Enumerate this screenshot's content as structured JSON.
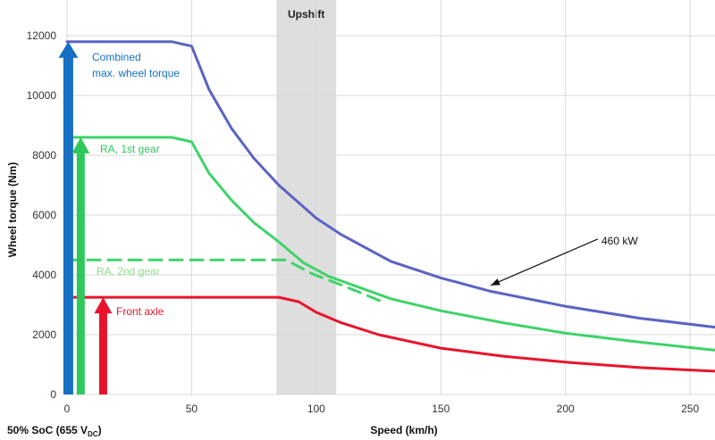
{
  "colors": {
    "blue": "#5b63c4",
    "green": "#3fd36a",
    "red": "#e8142c",
    "blue_arrow": "#1570c4",
    "green_arrow": "#2ec95a",
    "red_arrow": "#e8142c",
    "upshift_band": "#dedede",
    "combined_text": "#1570c4",
    "ra1_text": "#2ec95a",
    "ra2_text": "#8fdc8f",
    "front_text": "#e8142c",
    "grid": "#d9d9d9"
  },
  "chart_data": {
    "type": "line",
    "title": "",
    "xlabel": "Speed (km/h)",
    "ylabel": "Wheel torque (Nm)",
    "xlim": [
      0,
      260
    ],
    "ylim": [
      0,
      12000
    ],
    "x_ticks": [
      0,
      50,
      100,
      150,
      200,
      250
    ],
    "y_ticks": [
      0,
      2000,
      4000,
      6000,
      8000,
      10000,
      12000
    ],
    "grid": true,
    "soc_label": "50% SoC (655 V",
    "soc_sub": "DC",
    "soc_close": ")",
    "upshift": {
      "label": "Upshift",
      "range": [
        84,
        108
      ]
    },
    "series": [
      {
        "key": "combined",
        "style": "solid",
        "color": "blue",
        "points": [
          [
            0,
            11800
          ],
          [
            42,
            11800
          ],
          [
            50,
            11650
          ],
          [
            57,
            10200
          ],
          [
            66,
            8900
          ],
          [
            75,
            7900
          ],
          [
            85,
            7000
          ],
          [
            100,
            5900
          ],
          [
            110,
            5350
          ],
          [
            130,
            4450
          ],
          [
            150,
            3900
          ],
          [
            170,
            3450
          ],
          [
            200,
            2950
          ],
          [
            230,
            2550
          ],
          [
            260,
            2250
          ]
        ]
      },
      {
        "key": "ra1",
        "style": "solid",
        "color": "green",
        "points": [
          [
            0,
            8600
          ],
          [
            42,
            8600
          ],
          [
            50,
            8450
          ],
          [
            57,
            7400
          ],
          [
            66,
            6500
          ],
          [
            75,
            5750
          ],
          [
            85,
            5100
          ],
          [
            95,
            4400
          ],
          [
            105,
            3950
          ],
          [
            130,
            3200
          ],
          [
            150,
            2800
          ],
          [
            175,
            2400
          ],
          [
            200,
            2050
          ],
          [
            230,
            1750
          ],
          [
            260,
            1480
          ]
        ]
      },
      {
        "key": "ra2",
        "style": "dashed",
        "color": "green",
        "points": [
          [
            0,
            4500
          ],
          [
            88,
            4500
          ],
          [
            98,
            4050
          ],
          [
            112,
            3600
          ],
          [
            128,
            3050
          ]
        ]
      },
      {
        "key": "front",
        "style": "solid",
        "color": "red",
        "points": [
          [
            0,
            3250
          ],
          [
            85,
            3250
          ],
          [
            93,
            3100
          ],
          [
            100,
            2750
          ],
          [
            110,
            2400
          ],
          [
            125,
            2000
          ],
          [
            150,
            1550
          ],
          [
            175,
            1280
          ],
          [
            200,
            1080
          ],
          [
            230,
            900
          ],
          [
            260,
            780
          ]
        ]
      }
    ],
    "annotations": [
      {
        "key": "combined_line1",
        "text": "Combined",
        "color": "combined_text"
      },
      {
        "key": "combined_line2",
        "text": "max. wheel torque",
        "color": "combined_text"
      },
      {
        "key": "ra1",
        "text": "RA, 1st gear",
        "color": "ra1_text"
      },
      {
        "key": "ra2",
        "text": "RA, 2nd gear",
        "color": "ra2_text"
      },
      {
        "key": "front",
        "text": "Front axle",
        "color": "front_text"
      },
      {
        "key": "power",
        "text": "460 kW",
        "color": ""
      }
    ],
    "arrows": [
      {
        "key": "combined",
        "x": 0.5,
        "top": 11800,
        "color": "blue_arrow"
      },
      {
        "key": "ra1",
        "x": 5.5,
        "top": 8600,
        "color": "green_arrow"
      },
      {
        "key": "front",
        "x": 14.5,
        "top": 3250,
        "color": "red_arrow"
      }
    ],
    "power_pointer": {
      "from": [
        213,
        5200
      ],
      "to": [
        170,
        3650
      ]
    }
  }
}
